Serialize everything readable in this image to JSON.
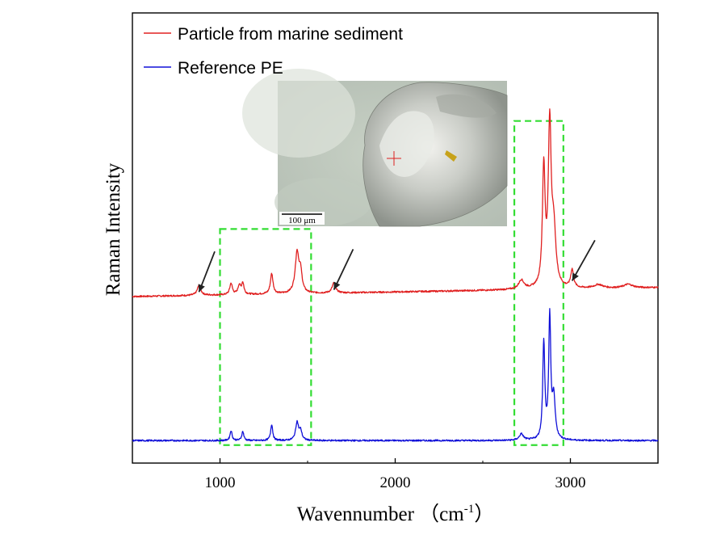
{
  "chart_data": {
    "type": "line",
    "xlabel": "Wavennumber  （cm",
    "xlabel_superscript": "-1",
    "xlabel_close": "）",
    "ylabel": "Raman Intensity",
    "xlim": [
      500,
      3500
    ],
    "ylim": [
      0,
      100
    ],
    "xticks": [
      1000,
      2000,
      3000
    ],
    "legend_position": "top-left",
    "series": [
      {
        "name": "Particle from marine sediment",
        "color": "#e02020",
        "baseline": 37,
        "baseline_end": 39,
        "peaks": [
          {
            "x": 880,
            "height": 2.2,
            "width": 12
          },
          {
            "x": 1063,
            "height": 2.5,
            "width": 9
          },
          {
            "x": 1110,
            "height": 2.0,
            "width": 9
          },
          {
            "x": 1130,
            "height": 2.5,
            "width": 8
          },
          {
            "x": 1295,
            "height": 4.5,
            "width": 9
          },
          {
            "x": 1440,
            "height": 9.0,
            "width": 13
          },
          {
            "x": 1460,
            "height": 4.0,
            "width": 10
          },
          {
            "x": 1650,
            "height": 2.2,
            "width": 12
          },
          {
            "x": 2720,
            "height": 2.0,
            "width": 18
          },
          {
            "x": 2848,
            "height": 26.0,
            "width": 9
          },
          {
            "x": 2882,
            "height": 35.0,
            "width": 10
          },
          {
            "x": 2905,
            "height": 12.0,
            "width": 14
          },
          {
            "x": 3010,
            "height": 4.0,
            "width": 10
          },
          {
            "x": 3160,
            "height": 0.8,
            "width": 30
          },
          {
            "x": 3330,
            "height": 0.8,
            "width": 30
          }
        ]
      },
      {
        "name": "Reference PE",
        "color": "#1010d8",
        "baseline": 5,
        "baseline_end": 5,
        "peaks": [
          {
            "x": 1063,
            "height": 2.2,
            "width": 7
          },
          {
            "x": 1130,
            "height": 2.0,
            "width": 7
          },
          {
            "x": 1295,
            "height": 3.6,
            "width": 7
          },
          {
            "x": 1440,
            "height": 4.0,
            "width": 10
          },
          {
            "x": 1460,
            "height": 2.0,
            "width": 9
          },
          {
            "x": 2720,
            "height": 1.4,
            "width": 14
          },
          {
            "x": 2848,
            "height": 21.5,
            "width": 7
          },
          {
            "x": 2882,
            "height": 27.0,
            "width": 7
          },
          {
            "x": 2905,
            "height": 9.0,
            "width": 10
          }
        ]
      }
    ],
    "highlight_regions": [
      {
        "x0": 1000,
        "x1": 1520,
        "y0": 4,
        "y1": 52,
        "color": "#33dd33"
      },
      {
        "x0": 2680,
        "x1": 2960,
        "y0": 4,
        "y1": 76,
        "color": "#33dd33"
      }
    ],
    "arrows": [
      {
        "tip_x": 880,
        "tip_y": 38,
        "tail_dx": 90,
        "tail_dy": 9
      },
      {
        "tip_x": 1650,
        "tip_y": 38.5,
        "tail_dx": 110,
        "tail_dy": 9
      },
      {
        "tip_x": 3010,
        "tip_y": 40.5,
        "tail_dx": 130,
        "tail_dy": 9
      }
    ],
    "inset": {
      "description": "microscope image of particle",
      "scalebar_label": "100 μm",
      "crosshair_color": "#dd2020"
    }
  }
}
